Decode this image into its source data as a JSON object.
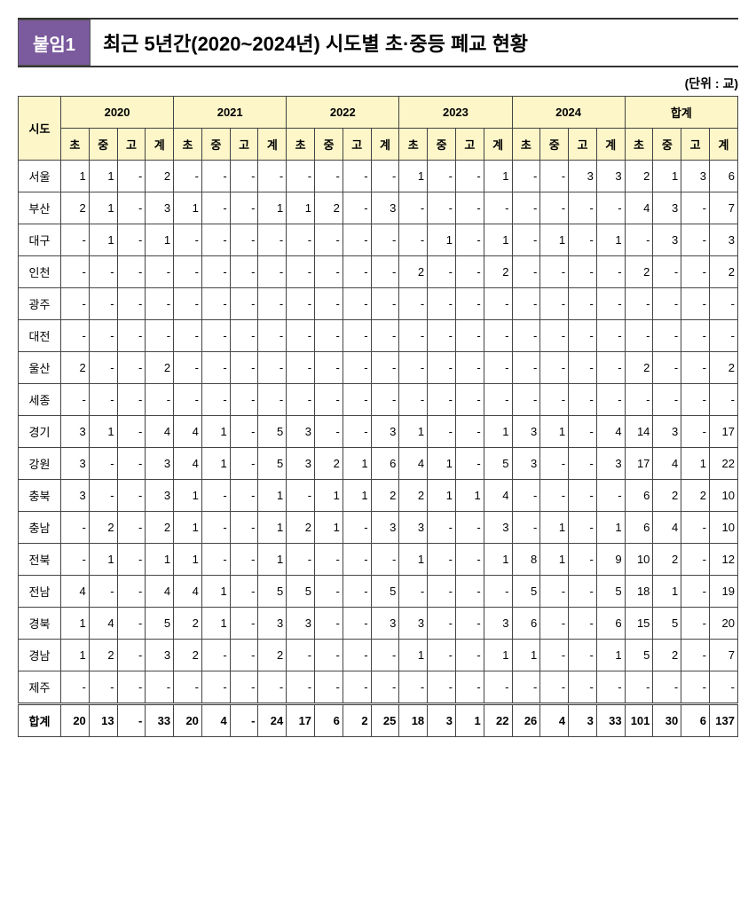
{
  "header": {
    "badge": "붙임1",
    "title": "최근 5년간(2020~2024년) 시도별 초·중등 폐교 현황"
  },
  "unit": "(단위 : 교)",
  "table": {
    "region_header": "시도",
    "year_groups": [
      "2020",
      "2021",
      "2022",
      "2023",
      "2024",
      "합계"
    ],
    "sub_headers": [
      "초",
      "중",
      "고",
      "계"
    ],
    "rows": [
      {
        "region": "서울",
        "cells": [
          "1",
          "1",
          "-",
          "2",
          "-",
          "-",
          "-",
          "-",
          "-",
          "-",
          "-",
          "-",
          "1",
          "-",
          "-",
          "1",
          "-",
          "-",
          "3",
          "3",
          "2",
          "1",
          "3",
          "6"
        ]
      },
      {
        "region": "부산",
        "cells": [
          "2",
          "1",
          "-",
          "3",
          "1",
          "-",
          "-",
          "1",
          "1",
          "2",
          "-",
          "3",
          "-",
          "-",
          "-",
          "-",
          "-",
          "-",
          "-",
          "-",
          "4",
          "3",
          "-",
          "7"
        ]
      },
      {
        "region": "대구",
        "cells": [
          "-",
          "1",
          "-",
          "1",
          "-",
          "-",
          "-",
          "-",
          "-",
          "-",
          "-",
          "-",
          "-",
          "1",
          "-",
          "1",
          "-",
          "1",
          "-",
          "1",
          "-",
          "3",
          "-",
          "3"
        ]
      },
      {
        "region": "인천",
        "cells": [
          "-",
          "-",
          "-",
          "-",
          "-",
          "-",
          "-",
          "-",
          "-",
          "-",
          "-",
          "-",
          "2",
          "-",
          "-",
          "2",
          "-",
          "-",
          "-",
          "-",
          "2",
          "-",
          "-",
          "2"
        ]
      },
      {
        "region": "광주",
        "cells": [
          "-",
          "-",
          "-",
          "-",
          "-",
          "-",
          "-",
          "-",
          "-",
          "-",
          "-",
          "-",
          "-",
          "-",
          "-",
          "-",
          "-",
          "-",
          "-",
          "-",
          "-",
          "-",
          "-",
          "-"
        ]
      },
      {
        "region": "대전",
        "cells": [
          "-",
          "-",
          "-",
          "-",
          "-",
          "-",
          "-",
          "-",
          "-",
          "-",
          "-",
          "-",
          "-",
          "-",
          "-",
          "-",
          "-",
          "-",
          "-",
          "-",
          "-",
          "-",
          "-",
          "-"
        ]
      },
      {
        "region": "울산",
        "cells": [
          "2",
          "-",
          "-",
          "2",
          "-",
          "-",
          "-",
          "-",
          "-",
          "-",
          "-",
          "-",
          "-",
          "-",
          "-",
          "-",
          "-",
          "-",
          "-",
          "-",
          "2",
          "-",
          "-",
          "2"
        ]
      },
      {
        "region": "세종",
        "cells": [
          "-",
          "-",
          "-",
          "-",
          "-",
          "-",
          "-",
          "-",
          "-",
          "-",
          "-",
          "-",
          "-",
          "-",
          "-",
          "-",
          "-",
          "-",
          "-",
          "-",
          "-",
          "-",
          "-",
          "-"
        ]
      },
      {
        "region": "경기",
        "cells": [
          "3",
          "1",
          "-",
          "4",
          "4",
          "1",
          "-",
          "5",
          "3",
          "-",
          "-",
          "3",
          "1",
          "-",
          "-",
          "1",
          "3",
          "1",
          "-",
          "4",
          "14",
          "3",
          "-",
          "17"
        ]
      },
      {
        "region": "강원",
        "cells": [
          "3",
          "-",
          "-",
          "3",
          "4",
          "1",
          "-",
          "5",
          "3",
          "2",
          "1",
          "6",
          "4",
          "1",
          "-",
          "5",
          "3",
          "-",
          "-",
          "3",
          "17",
          "4",
          "1",
          "22"
        ]
      },
      {
        "region": "충북",
        "cells": [
          "3",
          "-",
          "-",
          "3",
          "1",
          "-",
          "-",
          "1",
          "-",
          "1",
          "1",
          "2",
          "2",
          "1",
          "1",
          "4",
          "-",
          "-",
          "-",
          "-",
          "6",
          "2",
          "2",
          "10"
        ]
      },
      {
        "region": "충남",
        "cells": [
          "-",
          "2",
          "-",
          "2",
          "1",
          "-",
          "-",
          "1",
          "2",
          "1",
          "-",
          "3",
          "3",
          "-",
          "-",
          "3",
          "-",
          "1",
          "-",
          "1",
          "6",
          "4",
          "-",
          "10"
        ]
      },
      {
        "region": "전북",
        "cells": [
          "-",
          "1",
          "-",
          "1",
          "1",
          "-",
          "-",
          "1",
          "-",
          "-",
          "-",
          "-",
          "1",
          "-",
          "-",
          "1",
          "8",
          "1",
          "-",
          "9",
          "10",
          "2",
          "-",
          "12"
        ]
      },
      {
        "region": "전남",
        "cells": [
          "4",
          "-",
          "-",
          "4",
          "4",
          "1",
          "-",
          "5",
          "5",
          "-",
          "-",
          "5",
          "-",
          "-",
          "-",
          "-",
          "5",
          "-",
          "-",
          "5",
          "18",
          "1",
          "-",
          "19"
        ]
      },
      {
        "region": "경북",
        "cells": [
          "1",
          "4",
          "-",
          "5",
          "2",
          "1",
          "-",
          "3",
          "3",
          "-",
          "-",
          "3",
          "3",
          "-",
          "-",
          "3",
          "6",
          "-",
          "-",
          "6",
          "15",
          "5",
          "-",
          "20"
        ]
      },
      {
        "region": "경남",
        "cells": [
          "1",
          "2",
          "-",
          "3",
          "2",
          "-",
          "-",
          "2",
          "-",
          "-",
          "-",
          "-",
          "1",
          "-",
          "-",
          "1",
          "1",
          "-",
          "-",
          "1",
          "5",
          "2",
          "-",
          "7"
        ]
      },
      {
        "region": "제주",
        "cells": [
          "-",
          "-",
          "-",
          "-",
          "-",
          "-",
          "-",
          "-",
          "-",
          "-",
          "-",
          "-",
          "-",
          "-",
          "-",
          "-",
          "-",
          "-",
          "-",
          "-",
          "-",
          "-",
          "-",
          "-"
        ]
      }
    ],
    "total": {
      "label": "합계",
      "cells": [
        "20",
        "13",
        "-",
        "33",
        "20",
        "4",
        "-",
        "24",
        "17",
        "6",
        "2",
        "25",
        "18",
        "3",
        "1",
        "22",
        "26",
        "4",
        "3",
        "33",
        "101",
        "30",
        "6",
        "137"
      ]
    }
  }
}
